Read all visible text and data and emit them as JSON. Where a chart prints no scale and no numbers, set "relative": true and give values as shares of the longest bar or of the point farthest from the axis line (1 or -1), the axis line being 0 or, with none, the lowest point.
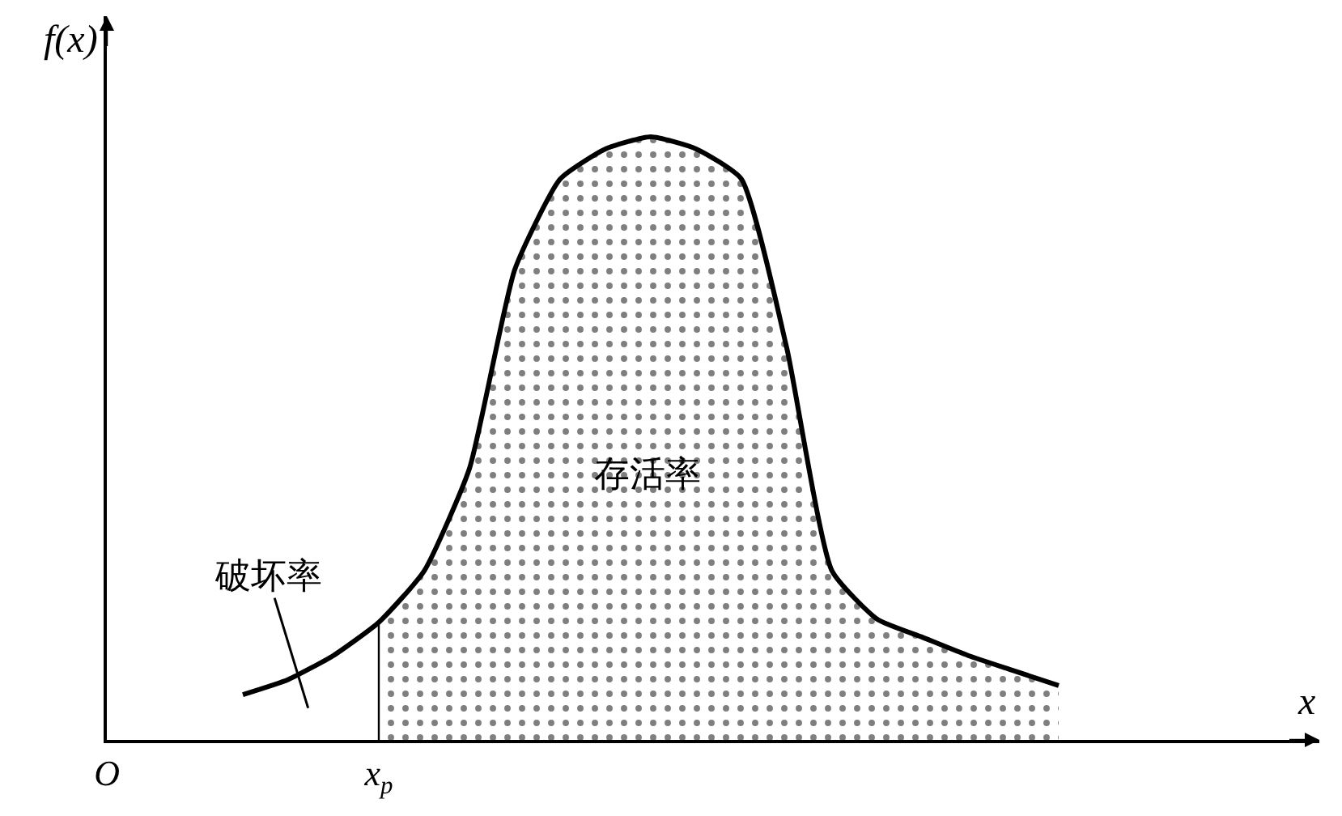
{
  "chart_data": {
    "type": "line",
    "relative": true,
    "xlabel": "x",
    "ylabel": "f(x)",
    "categories": [
      "O",
      null,
      null,
      null,
      null,
      null,
      "x$_{p}$",
      null,
      null,
      null,
      null,
      null,
      null,
      null,
      null,
      null,
      null,
      null,
      null,
      null,
      null,
      null,
      null,
      null,
      null,
      null,
      null
    ],
    "marker": "none",
    "ref_lines": [
      {
        "axis": "x",
        "value": "x$_{p}$",
        "color": "#000000"
      }
    ],
    "series": [
      {
        "type": "area",
        "color": "#000000",
        "values": [
          null,
          null,
          null,
          null,
          null,
          null,
          0.195,
          0.28,
          0.45,
          0.78,
          0.93,
          0.98,
          1.0,
          0.98,
          0.93,
          0.65,
          0.28,
          0.2,
          0.17,
          0.14,
          0.115,
          0.09,
          null,
          null,
          null,
          null,
          null
        ]
      },
      {
        "color": "#000000",
        "values": [
          null,
          null,
          null,
          0.075,
          0.1,
          0.14,
          0.195,
          0.28,
          0.45,
          0.78,
          0.93,
          0.98,
          1.0,
          0.98,
          0.93,
          0.65,
          0.28,
          0.2,
          0.17,
          0.14,
          0.115,
          0.09,
          null,
          null,
          null,
          null,
          null
        ]
      }
    ],
    "annotations": [
      "破坏率",
      "存活率"
    ]
  }
}
